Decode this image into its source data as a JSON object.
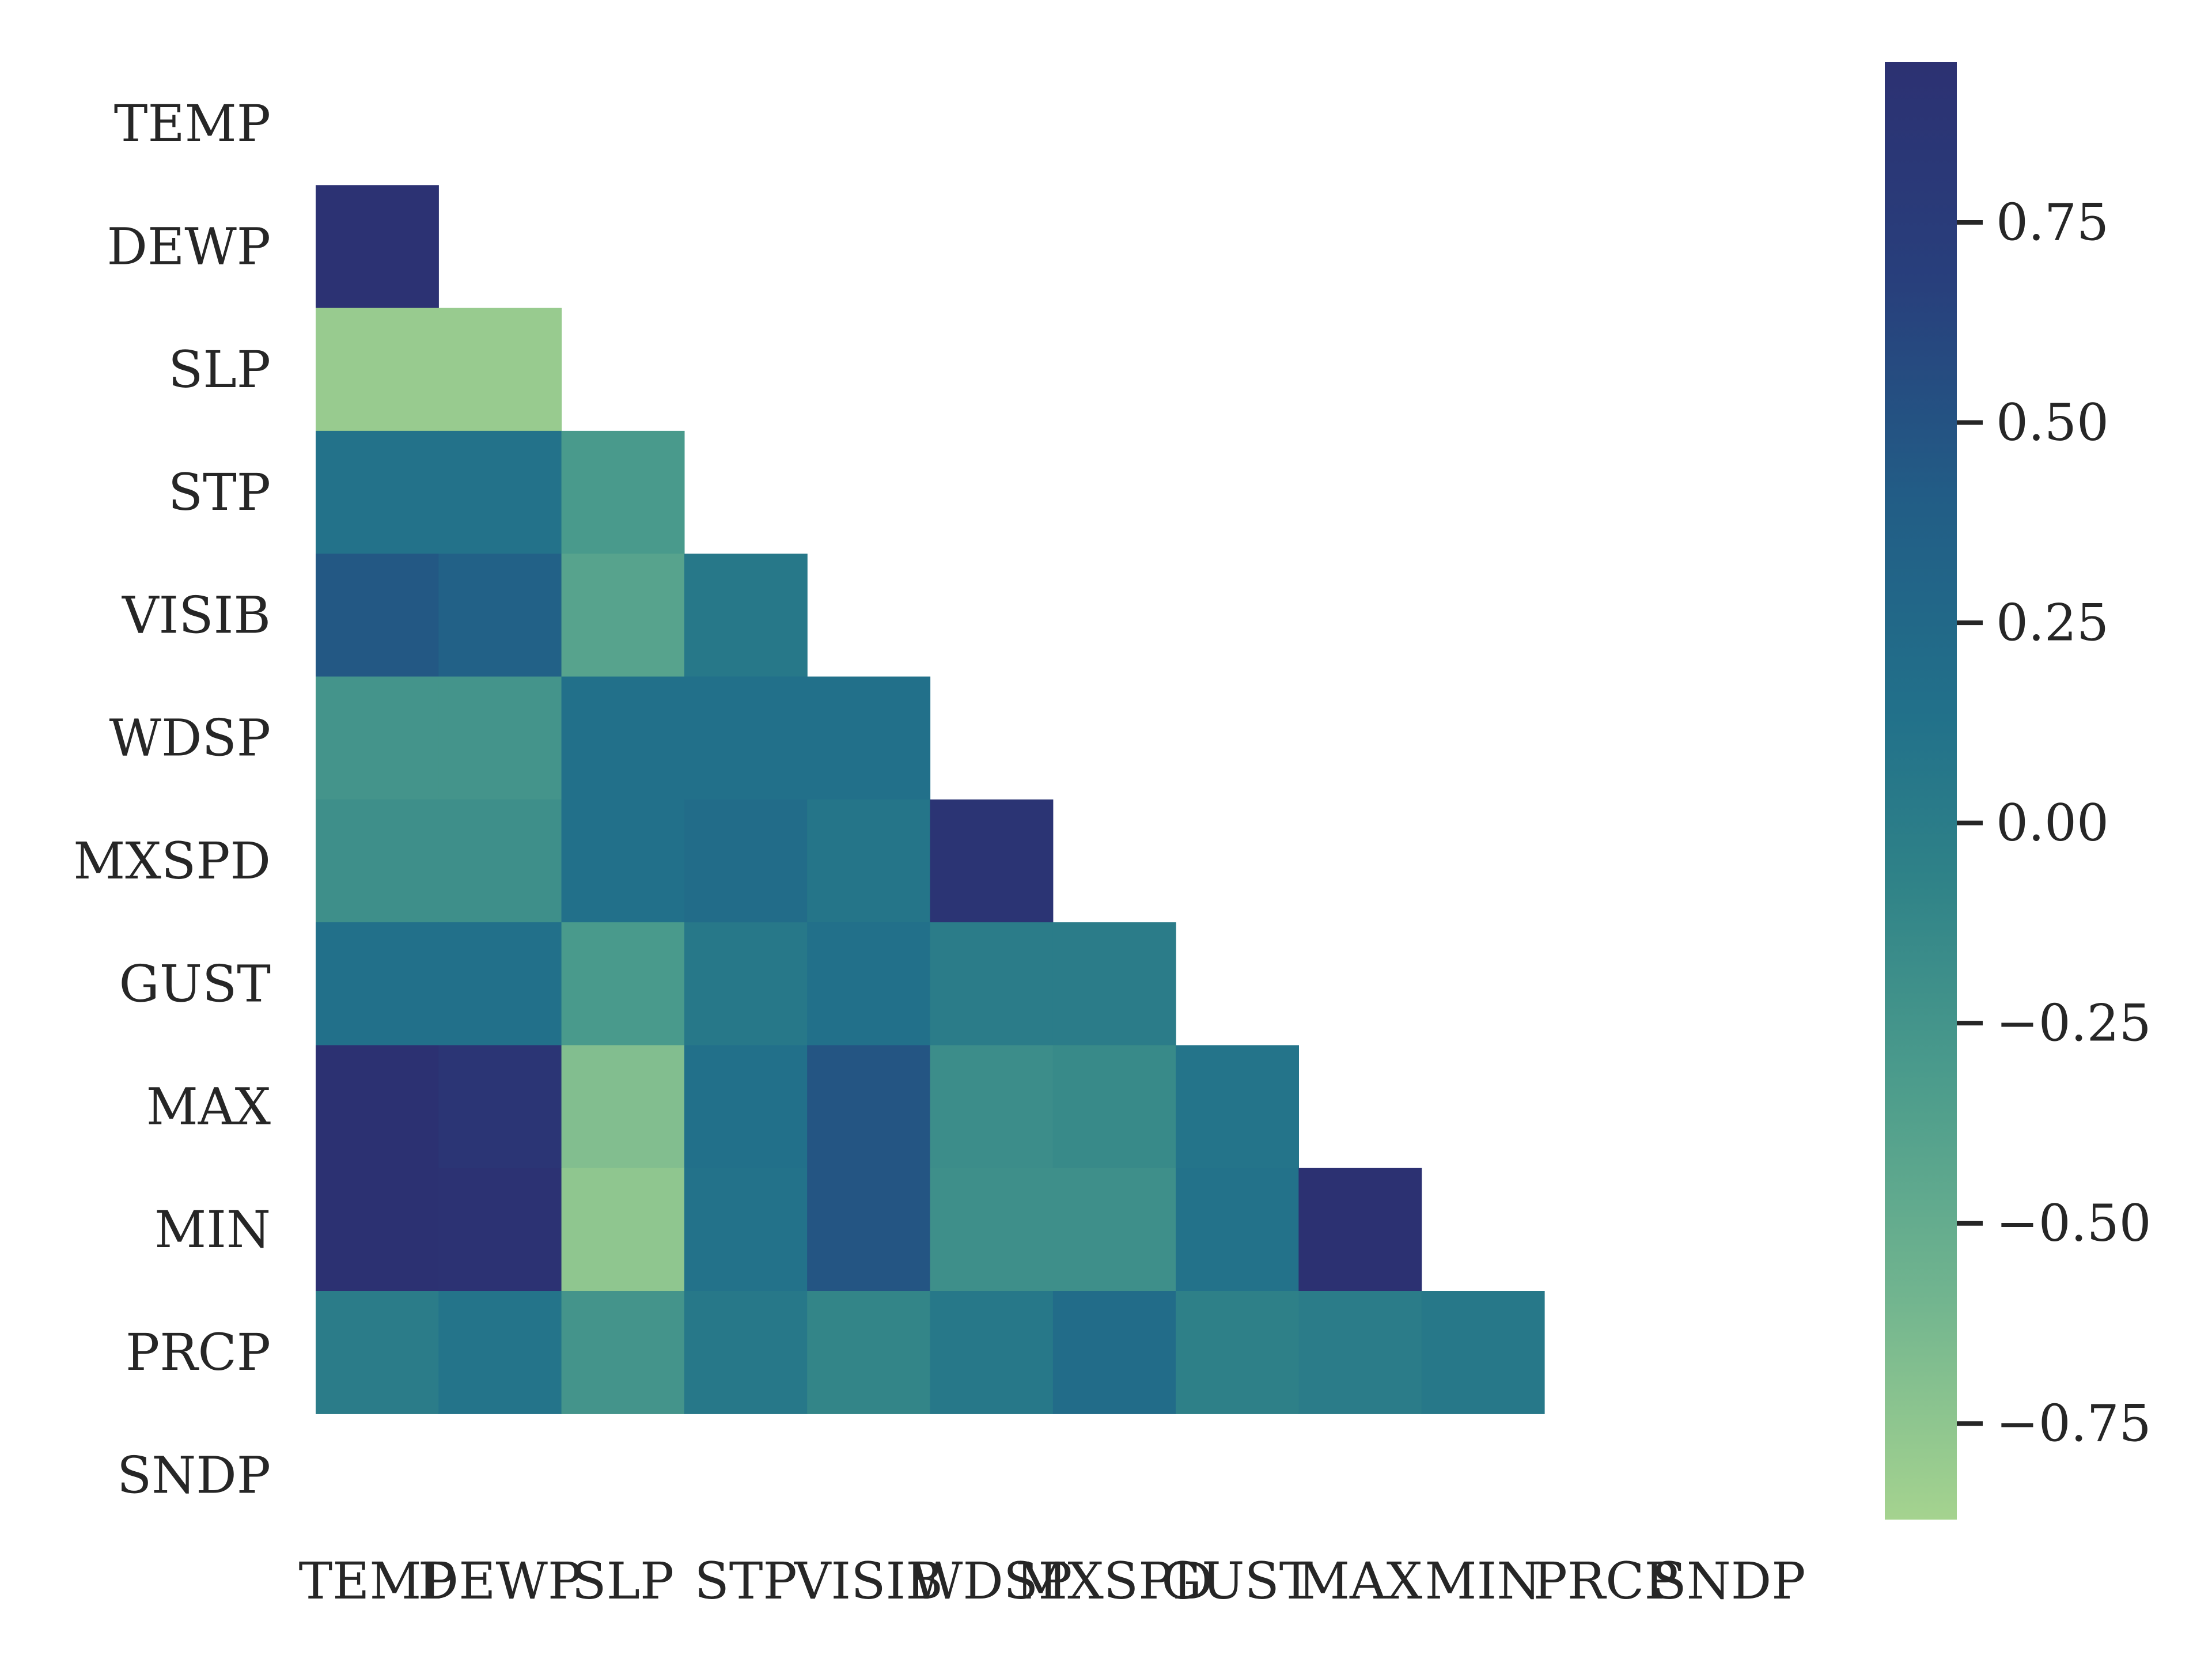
{
  "chart_data": {
    "type": "heatmap",
    "title": "",
    "xlabel": "",
    "ylabel": "",
    "variables": [
      "TEMP",
      "DEWP",
      "SLP",
      "STP",
      "VISIB",
      "WDSP",
      "MXSPD",
      "GUST",
      "MAX",
      "MIN",
      "PRCP",
      "SNDP"
    ],
    "mask": "upper-triangle-and-diagonal",
    "colormap": "crest",
    "vmin": -0.87,
    "vmax": 0.95,
    "colorbar_ticks": [
      0.75,
      0.5,
      0.25,
      0.0,
      -0.25,
      -0.5,
      -0.75
    ],
    "colorbar_tick_labels": [
      "0.75",
      "0.50",
      "0.25",
      "0.00",
      "−0.25",
      "−0.50",
      "−0.75"
    ],
    "cells": [
      {
        "row": "DEWP",
        "values": [
          0.93
        ]
      },
      {
        "row": "SLP",
        "values": [
          -0.8,
          -0.8
        ]
      },
      {
        "row": "STP",
        "values": [
          0.12,
          0.12,
          -0.3
        ]
      },
      {
        "row": "VISIB",
        "values": [
          0.45,
          0.35,
          -0.4,
          0.05
        ]
      },
      {
        "row": "WDSP",
        "values": [
          -0.25,
          -0.25,
          0.15,
          0.15,
          0.15
        ]
      },
      {
        "row": "MXSPD",
        "values": [
          -0.2,
          -0.2,
          0.15,
          0.2,
          0.08,
          0.9
        ]
      },
      {
        "row": "GUST",
        "values": [
          0.15,
          0.15,
          -0.3,
          0.05,
          0.15,
          0.0,
          0.0
        ]
      },
      {
        "row": "MAX",
        "values": [
          0.95,
          0.88,
          -0.68,
          0.15,
          0.48,
          -0.18,
          -0.15,
          0.1
        ]
      },
      {
        "row": "MIN",
        "values": [
          0.95,
          0.93,
          -0.75,
          0.12,
          0.48,
          -0.2,
          -0.2,
          0.12,
          0.95
        ]
      },
      {
        "row": "PRCP",
        "values": [
          0.0,
          0.1,
          -0.25,
          0.05,
          -0.1,
          0.05,
          0.2,
          -0.05,
          0.0,
          0.05
        ]
      },
      {
        "row": "SNDP",
        "values": [
          null,
          null,
          null,
          null,
          null,
          null,
          null,
          null,
          null,
          null,
          null
        ]
      }
    ]
  }
}
